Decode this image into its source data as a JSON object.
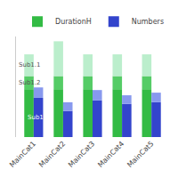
{
  "chart_data": {
    "type": "bar",
    "stacked": true,
    "categories": [
      "MainCat1",
      "MainCat2",
      "MainCat3",
      "MainCat4",
      "MainCat5"
    ],
    "groups": [
      {
        "name": "DurationH",
        "series": [
          {
            "color": "#33bb44",
            "values": [
              55,
              55,
              55,
              55,
              55
            ]
          },
          {
            "color": "#55cc66",
            "values": [
              15,
              15,
              15,
              15,
              15
            ],
            "label": "Sub1.2"
          },
          {
            "color": "#bbeecc",
            "values": [
              25,
              40,
              25,
              25,
              25
            ],
            "label": "Sub1.1"
          }
        ]
      },
      {
        "name": "Numbers",
        "series": [
          {
            "color": "#3344cc",
            "values": [
              45,
              30,
              42,
              38,
              40
            ],
            "label": "Sub1.3"
          },
          {
            "color": "#8899ee",
            "values": [
              12,
              10,
              12,
              10,
              11
            ]
          }
        ]
      }
    ],
    "ylim": [
      0,
      115.5
    ],
    "grid": false,
    "legend": "upper right",
    "tick_labels": "x"
  }
}
